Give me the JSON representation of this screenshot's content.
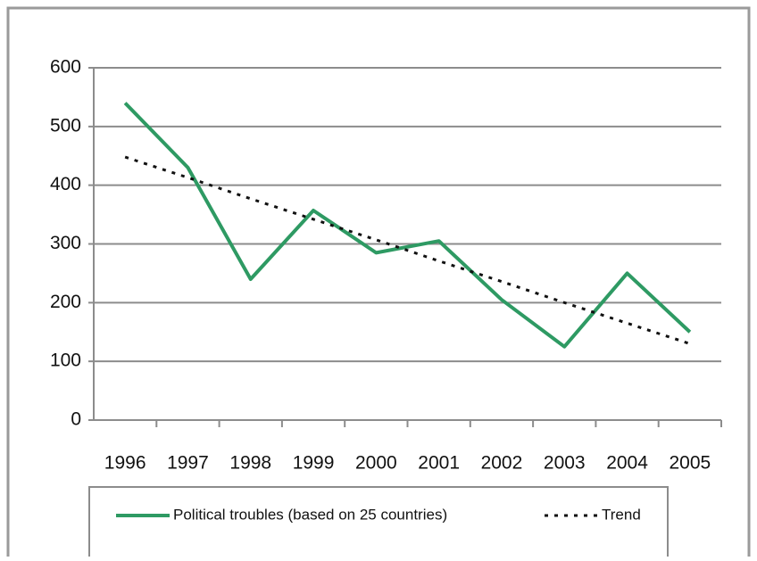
{
  "chart_data": {
    "type": "line",
    "categories": [
      "1996",
      "1997",
      "1998",
      "1999",
      "2000",
      "2001",
      "2002",
      "2003",
      "2004",
      "2005"
    ],
    "series": [
      {
        "name": "Political troubles (based on 25 countries)",
        "color": "#2e9a63",
        "dashed": false,
        "values": [
          540,
          430,
          240,
          357,
          285,
          305,
          205,
          125,
          250,
          150
        ]
      },
      {
        "name": "Trend",
        "color": "#111111",
        "dashed": true,
        "values": [
          448,
          413,
          377,
          342,
          307,
          271,
          236,
          200,
          165,
          130
        ]
      }
    ],
    "ylim": [
      0,
      600
    ],
    "yticks": [
      0,
      100,
      200,
      300,
      400,
      500,
      600
    ],
    "grid": true,
    "legend": "bottom"
  }
}
